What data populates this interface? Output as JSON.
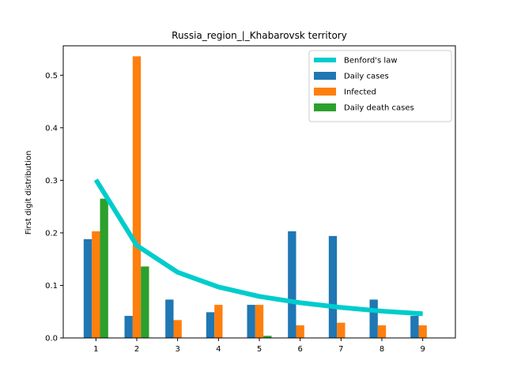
{
  "chart_data": {
    "type": "bar",
    "title": "Russia_region_|_Khabarovsk territory",
    "xlabel": "",
    "ylabel": "First digit distribution",
    "categories": [
      "1",
      "2",
      "3",
      "4",
      "5",
      "6",
      "7",
      "8",
      "9"
    ],
    "ylim": [
      0,
      0.556
    ],
    "yticks": [
      "0.0",
      "0.1",
      "0.2",
      "0.3",
      "0.4",
      "0.5"
    ],
    "grid": false,
    "legend_position": "top-right",
    "line_series": {
      "name": "Benford's law",
      "color": "#00cccc",
      "values": [
        0.301,
        0.176,
        0.125,
        0.097,
        0.079,
        0.067,
        0.058,
        0.051,
        0.046
      ]
    },
    "series": [
      {
        "name": "Daily cases",
        "color": "#1f77b4",
        "values": [
          0.188,
          0.042,
          0.073,
          0.049,
          0.063,
          0.203,
          0.194,
          0.073,
          0.042
        ]
      },
      {
        "name": "Infected",
        "color": "#ff7f0e",
        "values": [
          0.203,
          0.536,
          0.034,
          0.063,
          0.063,
          0.024,
          0.029,
          0.024,
          0.024
        ]
      },
      {
        "name": "Daily death cases",
        "color": "#2ca02c",
        "values": [
          0.265,
          0.136,
          0.0,
          0.0,
          0.004,
          0.0,
          0.0,
          0.0,
          0.0
        ]
      }
    ]
  }
}
